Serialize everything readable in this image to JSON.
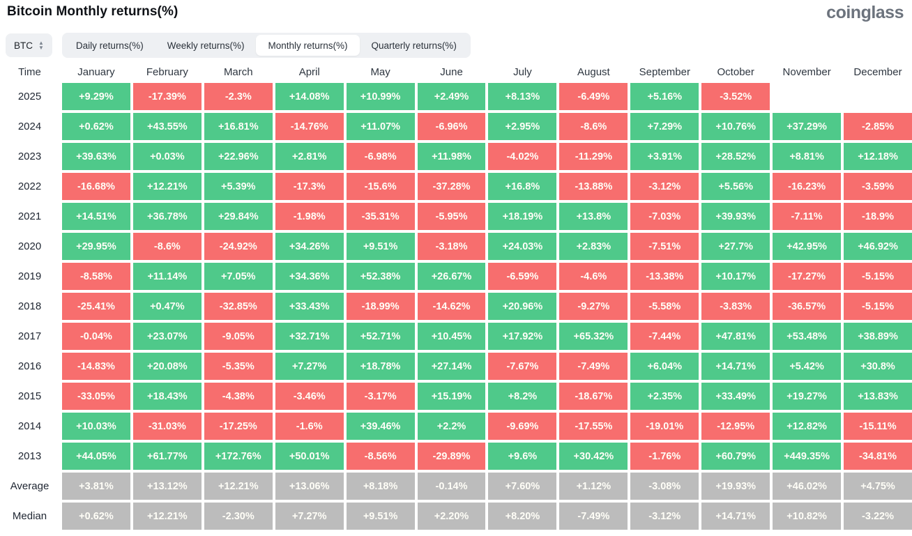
{
  "header": {
    "title": "Bitcoin Monthly returns(%)",
    "logo": "coinglass"
  },
  "controls": {
    "symbol_select": {
      "value": "BTC",
      "icon": "sort-updown-icon"
    },
    "tabs": [
      {
        "label": "Daily returns(%)",
        "active": false
      },
      {
        "label": "Weekly returns(%)",
        "active": false
      },
      {
        "label": "Monthly returns(%)",
        "active": true
      },
      {
        "label": "Quarterly returns(%)",
        "active": false
      }
    ]
  },
  "colors": {
    "positive": "#4fc98a",
    "negative": "#f76e6e",
    "summary": "#bcbcbc",
    "cell_text": "#fffef7"
  },
  "chart_data": {
    "type": "heatmap",
    "title": "Bitcoin Monthly returns(%)",
    "row_header": "Time",
    "columns": [
      "January",
      "February",
      "March",
      "April",
      "May",
      "June",
      "July",
      "August",
      "September",
      "October",
      "November",
      "December"
    ],
    "rows": [
      {
        "label": "2025",
        "kind": "year",
        "values": [
          "+9.29%",
          "-17.39%",
          "-2.3%",
          "+14.08%",
          "+10.99%",
          "+2.49%",
          "+8.13%",
          "-6.49%",
          "+5.16%",
          "-3.52%",
          "",
          ""
        ]
      },
      {
        "label": "2024",
        "kind": "year",
        "values": [
          "+0.62%",
          "+43.55%",
          "+16.81%",
          "-14.76%",
          "+11.07%",
          "-6.96%",
          "+2.95%",
          "-8.6%",
          "+7.29%",
          "+10.76%",
          "+37.29%",
          "-2.85%"
        ]
      },
      {
        "label": "2023",
        "kind": "year",
        "values": [
          "+39.63%",
          "+0.03%",
          "+22.96%",
          "+2.81%",
          "-6.98%",
          "+11.98%",
          "-4.02%",
          "-11.29%",
          "+3.91%",
          "+28.52%",
          "+8.81%",
          "+12.18%"
        ]
      },
      {
        "label": "2022",
        "kind": "year",
        "values": [
          "-16.68%",
          "+12.21%",
          "+5.39%",
          "-17.3%",
          "-15.6%",
          "-37.28%",
          "+16.8%",
          "-13.88%",
          "-3.12%",
          "+5.56%",
          "-16.23%",
          "-3.59%"
        ]
      },
      {
        "label": "2021",
        "kind": "year",
        "values": [
          "+14.51%",
          "+36.78%",
          "+29.84%",
          "-1.98%",
          "-35.31%",
          "-5.95%",
          "+18.19%",
          "+13.8%",
          "-7.03%",
          "+39.93%",
          "-7.11%",
          "-18.9%"
        ]
      },
      {
        "label": "2020",
        "kind": "year",
        "values": [
          "+29.95%",
          "-8.6%",
          "-24.92%",
          "+34.26%",
          "+9.51%",
          "-3.18%",
          "+24.03%",
          "+2.83%",
          "-7.51%",
          "+27.7%",
          "+42.95%",
          "+46.92%"
        ]
      },
      {
        "label": "2019",
        "kind": "year",
        "values": [
          "-8.58%",
          "+11.14%",
          "+7.05%",
          "+34.36%",
          "+52.38%",
          "+26.67%",
          "-6.59%",
          "-4.6%",
          "-13.38%",
          "+10.17%",
          "-17.27%",
          "-5.15%"
        ]
      },
      {
        "label": "2018",
        "kind": "year",
        "values": [
          "-25.41%",
          "+0.47%",
          "-32.85%",
          "+33.43%",
          "-18.99%",
          "-14.62%",
          "+20.96%",
          "-9.27%",
          "-5.58%",
          "-3.83%",
          "-36.57%",
          "-5.15%"
        ]
      },
      {
        "label": "2017",
        "kind": "year",
        "values": [
          "-0.04%",
          "+23.07%",
          "-9.05%",
          "+32.71%",
          "+52.71%",
          "+10.45%",
          "+17.92%",
          "+65.32%",
          "-7.44%",
          "+47.81%",
          "+53.48%",
          "+38.89%"
        ]
      },
      {
        "label": "2016",
        "kind": "year",
        "values": [
          "-14.83%",
          "+20.08%",
          "-5.35%",
          "+7.27%",
          "+18.78%",
          "+27.14%",
          "-7.67%",
          "-7.49%",
          "+6.04%",
          "+14.71%",
          "+5.42%",
          "+30.8%"
        ]
      },
      {
        "label": "2015",
        "kind": "year",
        "values": [
          "-33.05%",
          "+18.43%",
          "-4.38%",
          "-3.46%",
          "-3.17%",
          "+15.19%",
          "+8.2%",
          "-18.67%",
          "+2.35%",
          "+33.49%",
          "+19.27%",
          "+13.83%"
        ]
      },
      {
        "label": "2014",
        "kind": "year",
        "values": [
          "+10.03%",
          "-31.03%",
          "-17.25%",
          "-1.6%",
          "+39.46%",
          "+2.2%",
          "-9.69%",
          "-17.55%",
          "-19.01%",
          "-12.95%",
          "+12.82%",
          "-15.11%"
        ]
      },
      {
        "label": "2013",
        "kind": "year",
        "values": [
          "+44.05%",
          "+61.77%",
          "+172.76%",
          "+50.01%",
          "-8.56%",
          "-29.89%",
          "+9.6%",
          "+30.42%",
          "-1.76%",
          "+60.79%",
          "+449.35%",
          "-34.81%"
        ]
      },
      {
        "label": "Average",
        "kind": "summary",
        "values": [
          "+3.81%",
          "+13.12%",
          "+12.21%",
          "+13.06%",
          "+8.18%",
          "-0.14%",
          "+7.60%",
          "+1.12%",
          "-3.08%",
          "+19.93%",
          "+46.02%",
          "+4.75%"
        ]
      },
      {
        "label": "Median",
        "kind": "summary",
        "values": [
          "+0.62%",
          "+12.21%",
          "-2.30%",
          "+7.27%",
          "+9.51%",
          "+2.20%",
          "+8.20%",
          "-7.49%",
          "-3.12%",
          "+14.71%",
          "+10.82%",
          "-3.22%"
        ]
      }
    ]
  }
}
